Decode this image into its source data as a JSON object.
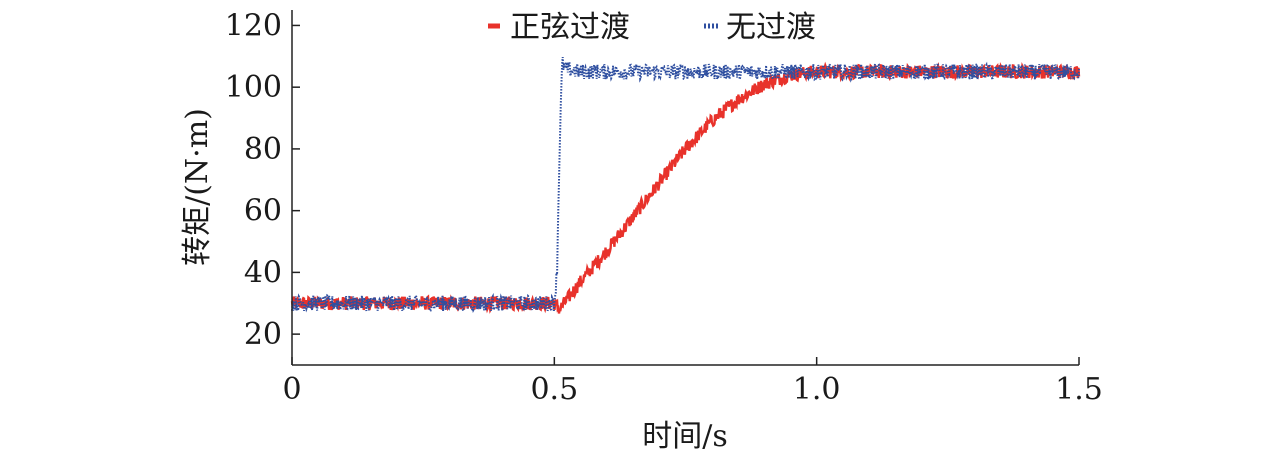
{
  "chart_data": {
    "type": "line",
    "title": "",
    "xlabel": "时间/s",
    "ylabel": "转矩/(N·m)",
    "xlim": [
      0,
      1.5
    ],
    "ylim": [
      10,
      125
    ],
    "x_ticks": [
      "0",
      "0.5",
      "1.0",
      "1.5"
    ],
    "x_tick_values": [
      0,
      0.5,
      1.0,
      1.5
    ],
    "y_ticks": [
      "20",
      "40",
      "60",
      "80",
      "100",
      "120"
    ],
    "y_tick_values": [
      20,
      40,
      60,
      80,
      100,
      120
    ],
    "legend_position": "top-center",
    "series": [
      {
        "name": "正弦过渡",
        "color": "#e8322b",
        "style": "solid",
        "noise_band": 2.2,
        "points": [
          [
            0,
            30
          ],
          [
            0.5,
            30
          ],
          [
            0.51,
            28
          ],
          [
            0.55,
            37
          ],
          [
            0.6,
            47
          ],
          [
            0.65,
            58
          ],
          [
            0.7,
            69
          ],
          [
            0.75,
            80
          ],
          [
            0.8,
            89
          ],
          [
            0.85,
            96
          ],
          [
            0.9,
            101
          ],
          [
            0.95,
            104
          ],
          [
            1.0,
            105
          ],
          [
            1.5,
            105
          ]
        ]
      },
      {
        "name": "无过渡",
        "color": "#2f4fa0",
        "style": "dotted",
        "noise_band": 2.5,
        "points": [
          [
            0,
            30
          ],
          [
            0.5,
            30
          ],
          [
            0.505,
            40
          ],
          [
            0.51,
            80
          ],
          [
            0.515,
            108
          ],
          [
            0.52,
            106
          ],
          [
            0.55,
            105
          ],
          [
            1.5,
            105
          ]
        ]
      }
    ]
  }
}
